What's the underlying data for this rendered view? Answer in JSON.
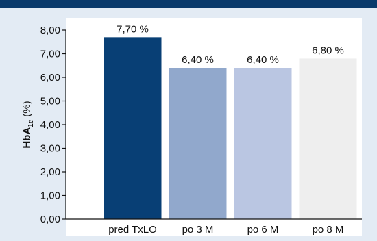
{
  "colors": {
    "header": "#0a3a6b",
    "background": "#e3ebf4",
    "plot_background": "#ffffff",
    "bars": [
      "#083f75",
      "#91a8cc",
      "#bac6e2",
      "#eeeeee"
    ]
  },
  "chart_data": {
    "type": "bar",
    "categories": [
      "pred TxLO",
      "po 3 M",
      "po 6 M",
      "po 8 M"
    ],
    "values": [
      7.7,
      6.4,
      6.4,
      6.8
    ],
    "value_labels": [
      "7,70 %",
      "6,40 %",
      "6,40 %",
      "6,80 %"
    ],
    "ylabel_main": "HbA",
    "ylabel_sub": "1c",
    "ylabel_unit": "(%)",
    "xlabel": "",
    "ylim": [
      0,
      8
    ],
    "yticks": [
      0,
      1,
      2,
      3,
      4,
      5,
      6,
      7,
      8
    ],
    "ytick_labels": [
      "0,00",
      "1,00",
      "2,00",
      "3,00",
      "4,00",
      "5,00",
      "6,00",
      "7,00",
      "8,00"
    ],
    "grid": false,
    "legend": "none"
  }
}
